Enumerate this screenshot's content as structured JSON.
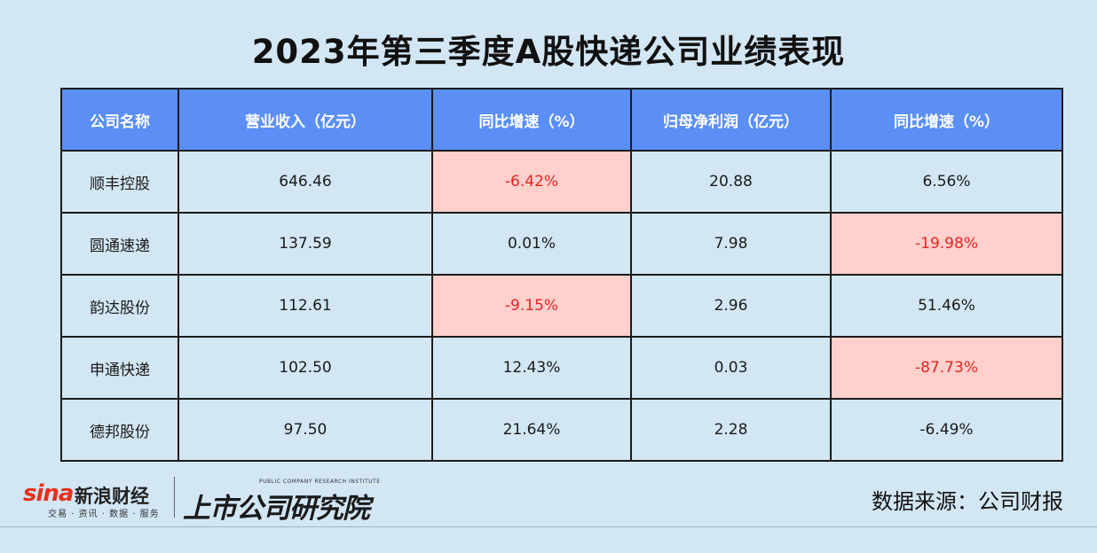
{
  "title": "2023年第三季度A股快递公司业绩表现",
  "table": {
    "headers": [
      "公司名称",
      "营业收入（亿元）",
      "同比增速（%）",
      "归母净利润（亿元）",
      "同比增速（%）"
    ],
    "rows": [
      [
        "顺丰控股",
        "646.46",
        "-6.42%",
        "20.88",
        "6.56%"
      ],
      [
        "圆通速递",
        "137.59",
        "0.01%",
        "7.98",
        "-19.98%"
      ],
      [
        "韵达股份",
        "112.61",
        "-9.15%",
        "2.96",
        "51.46%"
      ],
      [
        "申通快递",
        "102.50",
        "12.43%",
        "0.03",
        "-87.73%"
      ],
      [
        "德邦股份",
        "97.50",
        "21.64%",
        "2.28",
        "-6.49%"
      ]
    ]
  },
  "colors": {
    "header_bg": "#5b8ff6",
    "highlight_bg": "#ffd0cc",
    "highlight_text": "#e52424",
    "page_bg": "#d2e6f4"
  },
  "footer": {
    "sina_word": "sina",
    "sina_cn": "新浪财经",
    "sina_sub": "交易 · 资讯 · 数据 · 服务",
    "institute_en": "PUBLIC COMPANY RESEARCH INSTITUTE",
    "institute_cn": "上市公司研究院",
    "source": "数据来源：公司财报"
  }
}
